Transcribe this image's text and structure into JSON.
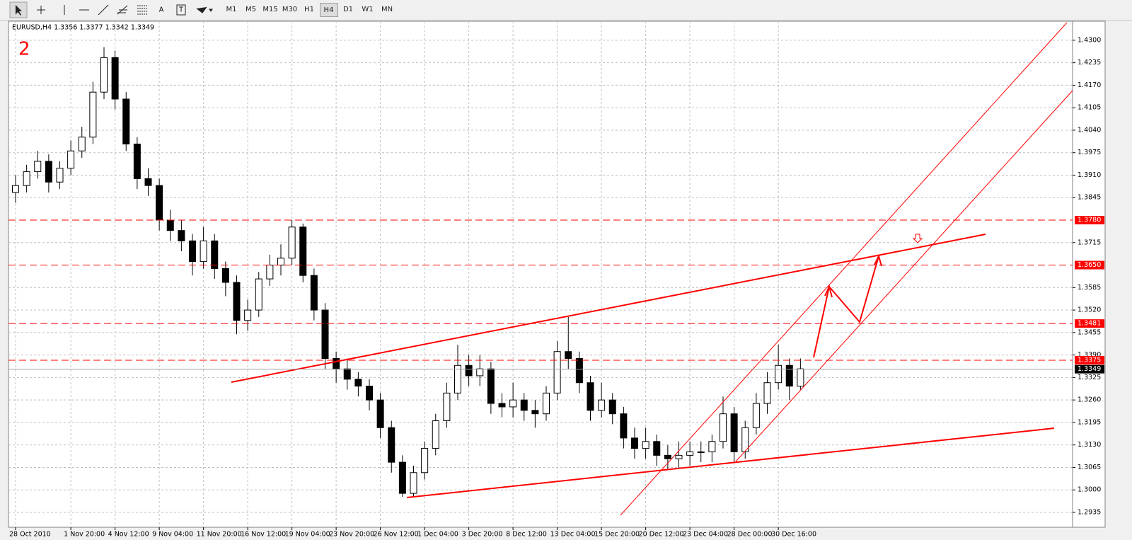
{
  "toolbar": {
    "timeframes": [
      "M1",
      "M5",
      "M15",
      "M30",
      "H1",
      "H4",
      "D1",
      "W1",
      "MN"
    ],
    "active": "H4"
  },
  "chart_data": {
    "type": "candlestick",
    "symbol_info": "EURUSD,H4  1.3356 1.3377 1.3342 1.3349",
    "annotation": "2",
    "up_color": "#ffffff",
    "down_color": "#000000",
    "grid": true,
    "categories": [
      "28 Oct 2010",
      null,
      null,
      null,
      null,
      "1 Nov 20:00",
      null,
      null,
      null,
      "4 Nov 12:00",
      null,
      null,
      null,
      "9 Nov 04:00",
      null,
      null,
      null,
      "11 Nov 20:00",
      null,
      null,
      null,
      "16 Nov 12:00",
      null,
      null,
      null,
      "19 Nov 04:00",
      null,
      null,
      null,
      "23 Nov 20:00",
      null,
      null,
      null,
      "26 Nov 12:00",
      null,
      null,
      null,
      "1 Dec 04:00",
      null,
      null,
      null,
      "3 Dec 20:00",
      null,
      null,
      null,
      "8 Dec 12:00",
      null,
      null,
      null,
      "13 Dec 04:00",
      null,
      null,
      null,
      "15 Dec 20:00",
      null,
      null,
      null,
      "20 Dec 12:00",
      null,
      null,
      null,
      "23 Dec 04:00",
      null,
      null,
      null,
      "28 Dec 00:00",
      null,
      null,
      null,
      "30 Dec 16:00",
      null,
      null
    ],
    "open": [
      1.386,
      1.388,
      1.392,
      1.395,
      1.389,
      1.393,
      1.398,
      1.402,
      1.415,
      1.425,
      1.413,
      1.4,
      1.39,
      1.388,
      1.378,
      1.375,
      1.372,
      1.366,
      1.372,
      1.364,
      1.36,
      1.349,
      1.352,
      1.361,
      1.365,
      1.367,
      1.376,
      1.362,
      1.352,
      1.338,
      1.335,
      1.332,
      1.33,
      1.326,
      1.318,
      1.308,
      1.299,
      1.305,
      1.312,
      1.32,
      1.328,
      1.336,
      1.333,
      1.335,
      1.325,
      1.324,
      1.326,
      1.323,
      1.322,
      1.328,
      1.34,
      1.338,
      1.331,
      1.323,
      1.326,
      1.322,
      1.315,
      1.312,
      1.314,
      1.31,
      1.309,
      1.31,
      1.311,
      1.311,
      1.314,
      1.322,
      1.311,
      1.318,
      1.325,
      1.331,
      1.336,
      1.33
    ],
    "high": [
      1.391,
      1.394,
      1.398,
      1.397,
      1.395,
      1.401,
      1.405,
      1.418,
      1.428,
      1.427,
      1.415,
      1.402,
      1.393,
      1.39,
      1.381,
      1.378,
      1.374,
      1.376,
      1.374,
      1.366,
      1.362,
      1.355,
      1.363,
      1.368,
      1.371,
      1.378,
      1.377,
      1.364,
      1.354,
      1.34,
      1.338,
      1.334,
      1.332,
      1.328,
      1.32,
      1.31,
      1.307,
      1.314,
      1.322,
      1.331,
      1.342,
      1.339,
      1.339,
      1.337,
      1.328,
      1.331,
      1.328,
      1.326,
      1.33,
      1.343,
      1.35,
      1.34,
      1.333,
      1.331,
      1.328,
      1.324,
      1.318,
      1.318,
      1.316,
      1.313,
      1.314,
      1.314,
      1.314,
      1.316,
      1.327,
      1.324,
      1.32,
      1.328,
      1.334,
      1.342,
      1.338,
      1.338
    ],
    "low": [
      1.383,
      1.386,
      1.39,
      1.386,
      1.387,
      1.391,
      1.396,
      1.4,
      1.413,
      1.41,
      1.398,
      1.387,
      1.385,
      1.375,
      1.372,
      1.369,
      1.362,
      1.364,
      1.361,
      1.356,
      1.345,
      1.346,
      1.35,
      1.359,
      1.362,
      1.365,
      1.36,
      1.349,
      1.335,
      1.331,
      1.329,
      1.327,
      1.323,
      1.315,
      1.305,
      1.298,
      1.298,
      1.303,
      1.31,
      1.318,
      1.326,
      1.33,
      1.33,
      1.322,
      1.321,
      1.321,
      1.32,
      1.318,
      1.32,
      1.326,
      1.335,
      1.328,
      1.32,
      1.321,
      1.319,
      1.312,
      1.309,
      1.309,
      1.307,
      1.306,
      1.306,
      1.307,
      1.308,
      1.308,
      1.312,
      1.308,
      1.309,
      1.316,
      1.322,
      1.329,
      1.326,
      1.329
    ],
    "close": [
      1.388,
      1.392,
      1.395,
      1.389,
      1.393,
      1.398,
      1.402,
      1.415,
      1.425,
      1.413,
      1.4,
      1.39,
      1.388,
      1.378,
      1.375,
      1.372,
      1.366,
      1.372,
      1.364,
      1.36,
      1.349,
      1.352,
      1.361,
      1.365,
      1.367,
      1.376,
      1.362,
      1.352,
      1.338,
      1.335,
      1.332,
      1.33,
      1.326,
      1.318,
      1.308,
      1.299,
      1.305,
      1.312,
      1.32,
      1.328,
      1.336,
      1.333,
      1.335,
      1.325,
      1.324,
      1.326,
      1.323,
      1.322,
      1.328,
      1.34,
      1.338,
      1.331,
      1.323,
      1.326,
      1.322,
      1.315,
      1.312,
      1.314,
      1.31,
      1.309,
      1.31,
      1.311,
      1.311,
      1.314,
      1.322,
      1.311,
      1.318,
      1.325,
      1.331,
      1.336,
      1.33,
      1.335
    ],
    "ylim": [
      1.2892,
      1.4355
    ],
    "yticks": [
      {
        "value": 1.43,
        "label": "1.4300"
      },
      {
        "value": 1.4235,
        "label": "1.4235"
      },
      {
        "value": 1.417,
        "label": "1.4170"
      },
      {
        "value": 1.4105,
        "label": "1.4105"
      },
      {
        "value": 1.404,
        "label": "1.4040"
      },
      {
        "value": 1.3975,
        "label": "1.3975"
      },
      {
        "value": 1.391,
        "label": "1.3910"
      },
      {
        "value": 1.3845,
        "label": "1.3845"
      },
      {
        "value": 1.3715,
        "label": "1.3715"
      },
      {
        "value": 1.3585,
        "label": "1.3585"
      },
      {
        "value": 1.352,
        "label": "1.3520"
      },
      {
        "value": 1.3455,
        "label": "1.3455"
      },
      {
        "value": 1.339,
        "label": "1.3390"
      },
      {
        "value": 1.3325,
        "label": "1.3325"
      },
      {
        "value": 1.326,
        "label": "1.3260"
      },
      {
        "value": 1.3195,
        "label": "1.3195"
      },
      {
        "value": 1.313,
        "label": "1.3130"
      },
      {
        "value": 1.3065,
        "label": "1.3065"
      },
      {
        "value": 1.3,
        "label": "1.3000"
      },
      {
        "value": 1.2935,
        "label": "1.2935"
      }
    ],
    "levels": [
      {
        "value": 1.378,
        "label": "1.3780"
      },
      {
        "value": 1.365,
        "label": "1.3650"
      },
      {
        "value": 1.3481,
        "label": "1.3481"
      },
      {
        "value": 1.3375,
        "label": "1.3375"
      }
    ],
    "levels_color": "#ff0000",
    "last_price": {
      "value": 1.3349,
      "label": "1.3349"
    }
  }
}
